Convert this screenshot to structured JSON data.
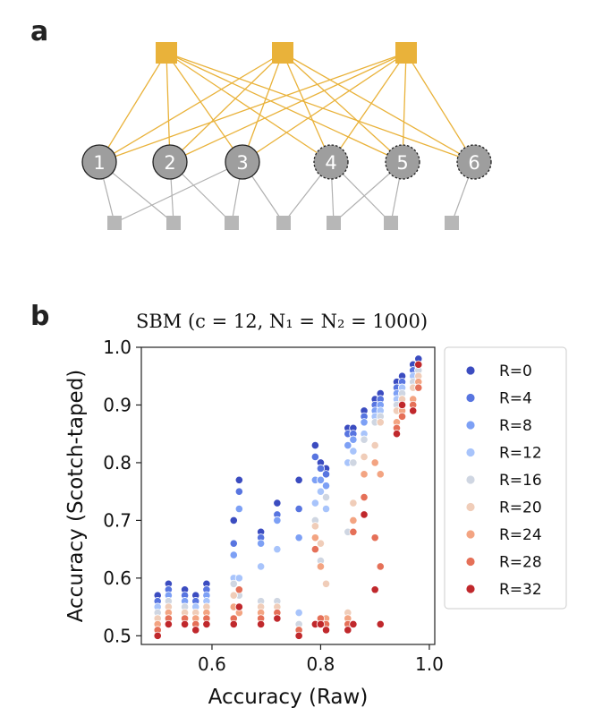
{
  "panel_a": {
    "label": "a",
    "top_factor_color": "#E9B23A",
    "bottom_factor_color": "#B7B7B7",
    "nodes": [
      {
        "label": "1",
        "dashed": false
      },
      {
        "label": "2",
        "dashed": false
      },
      {
        "label": "3",
        "dashed": false
      },
      {
        "label": "4",
        "dashed": true
      },
      {
        "label": "5",
        "dashed": true
      },
      {
        "label": "6",
        "dashed": true
      }
    ]
  },
  "panel_b": {
    "label": "b",
    "title": "SBM (c = 12, N₁ = N₂ = 1000)",
    "xlabel": "Accuracy (Raw)",
    "ylabel": "Accuracy (Scotch-taped)"
  },
  "chart_data": {
    "type": "scatter",
    "title": "SBM (c = 12, N₁ = N₂ = 1000)",
    "xlabel": "Accuracy (Raw)",
    "ylabel": "Accuracy (Scotch-taped)",
    "xlim": [
      0.47,
      1.01
    ],
    "ylim": [
      0.485,
      1.0
    ],
    "xticks": [
      0.6,
      0.8,
      1.0
    ],
    "yticks": [
      0.5,
      0.6,
      0.7,
      0.8,
      0.9,
      1.0
    ],
    "xtick_labels": [
      "0.6",
      "0.8",
      "1.0"
    ],
    "ytick_labels": [
      "0.5",
      "0.6",
      "0.7",
      "0.8",
      "0.9",
      "1.0"
    ],
    "grid": false,
    "legend_position": "right",
    "series": [
      {
        "name": "R=0",
        "color": "#3B4CC0",
        "x": [
          0.5,
          0.52,
          0.55,
          0.57,
          0.59,
          0.64,
          0.65,
          0.69,
          0.72,
          0.76,
          0.79,
          0.8,
          0.81,
          0.85,
          0.86,
          0.88,
          0.9,
          0.91,
          0.94,
          0.95,
          0.97,
          0.98
        ],
        "y": [
          0.57,
          0.59,
          0.58,
          0.57,
          0.59,
          0.7,
          0.77,
          0.68,
          0.73,
          0.77,
          0.83,
          0.8,
          0.79,
          0.86,
          0.86,
          0.89,
          0.91,
          0.92,
          0.94,
          0.95,
          0.97,
          0.98
        ]
      },
      {
        "name": "R=4",
        "color": "#5875E0",
        "x": [
          0.5,
          0.52,
          0.55,
          0.57,
          0.59,
          0.64,
          0.65,
          0.69,
          0.72,
          0.76,
          0.79,
          0.8,
          0.81,
          0.85,
          0.86,
          0.88,
          0.9,
          0.91,
          0.94,
          0.95,
          0.97,
          0.98
        ],
        "y": [
          0.56,
          0.58,
          0.57,
          0.56,
          0.58,
          0.66,
          0.75,
          0.67,
          0.71,
          0.72,
          0.81,
          0.79,
          0.78,
          0.85,
          0.85,
          0.88,
          0.9,
          0.91,
          0.93,
          0.94,
          0.96,
          0.97
        ]
      },
      {
        "name": "R=8",
        "color": "#7DA0F5",
        "x": [
          0.5,
          0.52,
          0.55,
          0.57,
          0.59,
          0.64,
          0.65,
          0.69,
          0.72,
          0.76,
          0.79,
          0.8,
          0.81,
          0.85,
          0.86,
          0.88,
          0.9,
          0.91,
          0.94,
          0.95,
          0.97,
          0.98
        ],
        "y": [
          0.55,
          0.57,
          0.56,
          0.55,
          0.57,
          0.64,
          0.72,
          0.66,
          0.7,
          0.67,
          0.77,
          0.77,
          0.76,
          0.83,
          0.84,
          0.87,
          0.89,
          0.9,
          0.92,
          0.93,
          0.95,
          0.96
        ]
      },
      {
        "name": "R=12",
        "color": "#A8C4FB",
        "x": [
          0.5,
          0.52,
          0.55,
          0.57,
          0.59,
          0.64,
          0.65,
          0.69,
          0.72,
          0.76,
          0.79,
          0.8,
          0.81,
          0.85,
          0.86,
          0.88,
          0.9,
          0.91,
          0.94,
          0.95,
          0.97,
          0.98
        ],
        "y": [
          0.55,
          0.56,
          0.55,
          0.55,
          0.56,
          0.6,
          0.6,
          0.62,
          0.65,
          0.54,
          0.73,
          0.75,
          0.72,
          0.8,
          0.82,
          0.85,
          0.88,
          0.89,
          0.91,
          0.93,
          0.95,
          0.96
        ]
      },
      {
        "name": "R=16",
        "color": "#CFD6E2",
        "x": [
          0.5,
          0.52,
          0.55,
          0.57,
          0.59,
          0.64,
          0.65,
          0.69,
          0.72,
          0.76,
          0.79,
          0.8,
          0.81,
          0.85,
          0.86,
          0.88,
          0.9,
          0.91,
          0.94,
          0.95,
          0.97,
          0.98
        ],
        "y": [
          0.54,
          0.56,
          0.55,
          0.54,
          0.55,
          0.59,
          0.57,
          0.56,
          0.56,
          0.52,
          0.7,
          0.63,
          0.74,
          0.68,
          0.8,
          0.84,
          0.87,
          0.88,
          0.9,
          0.92,
          0.94,
          0.96
        ]
      },
      {
        "name": "R=20",
        "color": "#F0CDB9",
        "x": [
          0.5,
          0.52,
          0.55,
          0.57,
          0.59,
          0.64,
          0.65,
          0.69,
          0.72,
          0.76,
          0.79,
          0.8,
          0.81,
          0.85,
          0.86,
          0.88,
          0.9,
          0.91,
          0.94,
          0.95,
          0.97,
          0.98
        ],
        "y": [
          0.53,
          0.55,
          0.54,
          0.54,
          0.55,
          0.57,
          0.55,
          0.55,
          0.55,
          0.51,
          0.69,
          0.66,
          0.59,
          0.54,
          0.73,
          0.81,
          0.83,
          0.87,
          0.89,
          0.91,
          0.93,
          0.95
        ]
      },
      {
        "name": "R=24",
        "color": "#F3A482",
        "x": [
          0.5,
          0.52,
          0.55,
          0.57,
          0.59,
          0.64,
          0.65,
          0.69,
          0.72,
          0.76,
          0.79,
          0.8,
          0.81,
          0.85,
          0.86,
          0.88,
          0.9,
          0.91,
          0.94,
          0.95,
          0.97,
          0.98
        ],
        "y": [
          0.52,
          0.54,
          0.53,
          0.53,
          0.54,
          0.55,
          0.54,
          0.54,
          0.54,
          0.51,
          0.67,
          0.62,
          0.53,
          0.53,
          0.7,
          0.78,
          0.8,
          0.78,
          0.87,
          0.89,
          0.91,
          0.94
        ]
      },
      {
        "name": "R=28",
        "color": "#E57058",
        "x": [
          0.5,
          0.52,
          0.55,
          0.57,
          0.59,
          0.64,
          0.65,
          0.69,
          0.72,
          0.76,
          0.79,
          0.8,
          0.81,
          0.85,
          0.86,
          0.88,
          0.9,
          0.91,
          0.94,
          0.95,
          0.97,
          0.98
        ],
        "y": [
          0.51,
          0.53,
          0.53,
          0.52,
          0.53,
          0.53,
          0.58,
          0.53,
          0.54,
          0.51,
          0.65,
          0.53,
          0.52,
          0.52,
          0.68,
          0.74,
          0.67,
          0.62,
          0.86,
          0.88,
          0.9,
          0.93
        ]
      },
      {
        "name": "R=32",
        "color": "#C0282C",
        "x": [
          0.5,
          0.52,
          0.55,
          0.57,
          0.59,
          0.64,
          0.65,
          0.69,
          0.72,
          0.76,
          0.79,
          0.8,
          0.81,
          0.85,
          0.86,
          0.88,
          0.9,
          0.91,
          0.94,
          0.95,
          0.97,
          0.98
        ],
        "y": [
          0.5,
          0.52,
          0.52,
          0.51,
          0.52,
          0.52,
          0.55,
          0.52,
          0.53,
          0.5,
          0.52,
          0.52,
          0.51,
          0.51,
          0.52,
          0.71,
          0.58,
          0.52,
          0.85,
          0.9,
          0.89,
          0.97
        ]
      }
    ]
  }
}
